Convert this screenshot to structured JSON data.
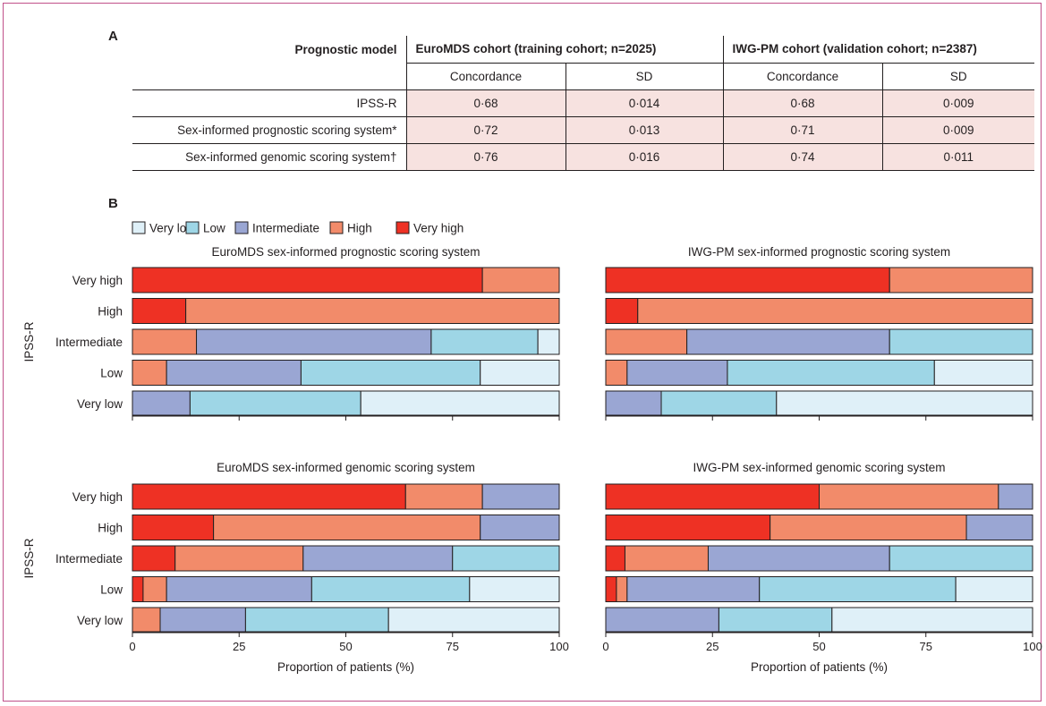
{
  "panel_labels": {
    "a": "A",
    "b": "B"
  },
  "table": {
    "header": {
      "model": "Prognostic model",
      "cohort1": "EuroMDS cohort (training cohort; n=2025)",
      "cohort2": "IWG-PM cohort (validation cohort; n=2387)"
    },
    "subheaders": [
      "Concordance",
      "SD",
      "Concordance",
      "SD"
    ],
    "rows": [
      {
        "model": "IPSS-R",
        "values": [
          "0·68",
          "0·014",
          "0·68",
          "0·009"
        ]
      },
      {
        "model": "Sex-informed prognostic scoring system*",
        "values": [
          "0·72",
          "0·013",
          "0·71",
          "0·009"
        ]
      },
      {
        "model": "Sex-informed genomic scoring system†",
        "values": [
          "0·76",
          "0·016",
          "0·74",
          "0·011"
        ]
      }
    ]
  },
  "legend": [
    {
      "label": "Very low",
      "color": "#dff0f8"
    },
    {
      "label": "Low",
      "color": "#9ed6e6"
    },
    {
      "label": "Intermediate",
      "color": "#9aa6d3"
    },
    {
      "label": "High",
      "color": "#f28b6a"
    },
    {
      "label": "Very high",
      "color": "#ee3124"
    }
  ],
  "chart_data": [
    {
      "type": "bar",
      "orientation": "horizontal",
      "stacked": true,
      "title": "EuroMDS sex-informed prognostic scoring system",
      "ylabel": "IPSS-R",
      "xlabel": "",
      "categories": [
        "Very high",
        "High",
        "Intermediate",
        "Low",
        "Very low"
      ],
      "xlim": [
        0,
        100
      ],
      "xticks": [
        0,
        25,
        50,
        75,
        100
      ],
      "series": [
        {
          "name": "Very high",
          "values": [
            82,
            12.5,
            0,
            0,
            0
          ]
        },
        {
          "name": "High",
          "values": [
            18,
            87.5,
            15,
            8,
            0
          ]
        },
        {
          "name": "Intermediate",
          "values": [
            0,
            0,
            55,
            31.5,
            13.5
          ]
        },
        {
          "name": "Low",
          "values": [
            0,
            0,
            25,
            42,
            40
          ]
        },
        {
          "name": "Very low",
          "values": [
            0,
            0,
            5,
            18.5,
            46.5
          ]
        }
      ]
    },
    {
      "type": "bar",
      "orientation": "horizontal",
      "stacked": true,
      "title": "IWG-PM sex-informed prognostic scoring system",
      "ylabel": "",
      "xlabel": "",
      "categories": [
        "Very high",
        "High",
        "Intermediate",
        "Low",
        "Very low"
      ],
      "xlim": [
        0,
        100
      ],
      "xticks": [
        0,
        25,
        50,
        75,
        100
      ],
      "series": [
        {
          "name": "Very high",
          "values": [
            66.5,
            7.5,
            0,
            0,
            0
          ]
        },
        {
          "name": "High",
          "values": [
            33.5,
            92.5,
            19,
            5,
            0
          ]
        },
        {
          "name": "Intermediate",
          "values": [
            0,
            0,
            47.5,
            23.5,
            13
          ]
        },
        {
          "name": "Low",
          "values": [
            0,
            0,
            33.5,
            48.5,
            27
          ]
        },
        {
          "name": "Very low",
          "values": [
            0,
            0,
            0,
            23,
            60
          ]
        }
      ]
    },
    {
      "type": "bar",
      "orientation": "horizontal",
      "stacked": true,
      "title": "EuroMDS sex-informed genomic scoring system",
      "ylabel": "IPSS-R",
      "xlabel": "Proportion of patients (%)",
      "categories": [
        "Very high",
        "High",
        "Intermediate",
        "Low",
        "Very low"
      ],
      "xlim": [
        0,
        100
      ],
      "xticks": [
        0,
        25,
        50,
        75,
        100
      ],
      "series": [
        {
          "name": "Very high",
          "values": [
            64,
            19,
            10,
            2.5,
            0
          ]
        },
        {
          "name": "High",
          "values": [
            18,
            62.5,
            30,
            5.5,
            6.5
          ]
        },
        {
          "name": "Intermediate",
          "values": [
            18,
            18.5,
            35,
            34,
            20
          ]
        },
        {
          "name": "Low",
          "values": [
            0,
            0,
            25,
            37,
            33.5
          ]
        },
        {
          "name": "Very low",
          "values": [
            0,
            0,
            0,
            21,
            40
          ]
        }
      ]
    },
    {
      "type": "bar",
      "orientation": "horizontal",
      "stacked": true,
      "title": "IWG-PM sex-informed genomic scoring system",
      "ylabel": "",
      "xlabel": "Proportion of patients (%)",
      "categories": [
        "Very high",
        "High",
        "Intermediate",
        "Low",
        "Very low"
      ],
      "xlim": [
        0,
        100
      ],
      "xticks": [
        0,
        25,
        50,
        75,
        100
      ],
      "series": [
        {
          "name": "Very high",
          "values": [
            50,
            38.5,
            4.5,
            2.5,
            0
          ]
        },
        {
          "name": "High",
          "values": [
            42,
            46,
            19.5,
            2.5,
            0
          ]
        },
        {
          "name": "Intermediate",
          "values": [
            8,
            15.5,
            42.5,
            31,
            26.5
          ]
        },
        {
          "name": "Low",
          "values": [
            0,
            0,
            33.5,
            46,
            26.5
          ]
        },
        {
          "name": "Very low",
          "values": [
            0,
            0,
            0,
            18,
            47
          ]
        }
      ]
    }
  ]
}
